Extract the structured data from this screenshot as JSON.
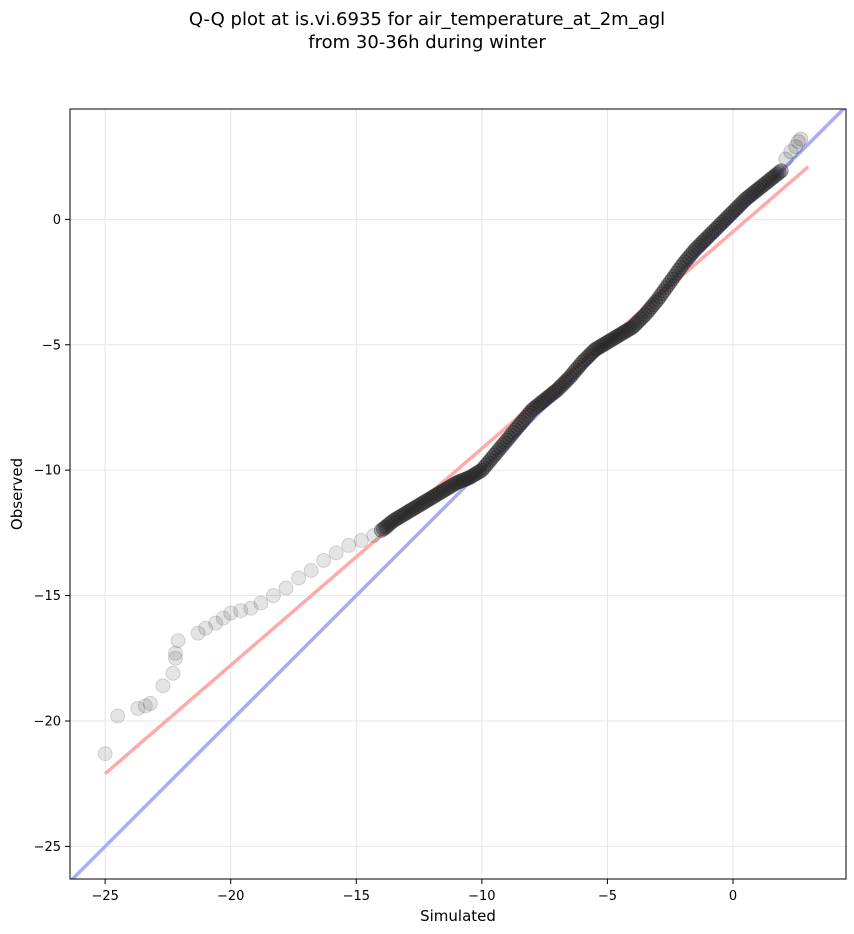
{
  "chart_data": {
    "type": "scatter",
    "title_line1": "Q-Q plot at is.vi.6935 for air_temperature_at_2m_agl",
    "title_line2": "from 30-36h during winter",
    "xlabel": "Simulated",
    "ylabel": "Observed",
    "xlim": [
      -26.4,
      4.5
    ],
    "ylim": [
      -26.3,
      4.4
    ],
    "xticks": [
      -25,
      -20,
      -15,
      -10,
      -5,
      0
    ],
    "yticks": [
      -25,
      -20,
      -15,
      -10,
      -5,
      0
    ],
    "xtick_labels": [
      "−25",
      "−20",
      "−15",
      "−10",
      "−5",
      "0"
    ],
    "ytick_labels": [
      "−25",
      "−20",
      "−15",
      "−10",
      "−5",
      "0"
    ],
    "grid": true,
    "identity_line": {
      "color": "#aaaaff",
      "x": [
        -26.4,
        4.5
      ],
      "y": [
        -26.4,
        4.5
      ]
    },
    "fit_line": {
      "color": "#ffaaaa",
      "x": [
        -25.0,
        3.0
      ],
      "y": [
        -22.1,
        2.1
      ]
    },
    "points_outer": {
      "x": [
        -25.0,
        -24.5,
        -23.7,
        -23.4,
        -23.2,
        -22.7,
        -22.3,
        -22.2,
        -22.2,
        -22.1,
        -21.3,
        -21.0,
        -20.6,
        -20.3,
        -20.0,
        -19.6,
        -19.2,
        -18.8,
        -18.3,
        -17.8,
        -17.3,
        -16.8,
        -16.3,
        -15.8,
        -15.3,
        -14.8,
        -14.3,
        -13.8
      ],
      "y": [
        -21.3,
        -19.8,
        -19.5,
        -19.4,
        -19.3,
        -18.6,
        -18.1,
        -17.5,
        -17.3,
        -16.8,
        -16.5,
        -16.3,
        -16.1,
        -15.9,
        -15.7,
        -15.6,
        -15.5,
        -15.3,
        -15.0,
        -14.7,
        -14.3,
        -14.0,
        -13.6,
        -13.3,
        -13.0,
        -12.8,
        -12.6,
        -12.3
      ]
    },
    "points_dense": {
      "x": [
        -14.0,
        -13.5,
        -13.0,
        -12.5,
        -12.0,
        -11.5,
        -11.0,
        -10.5,
        -10.0,
        -9.5,
        -9.0,
        -8.5,
        -8.0,
        -7.5,
        -7.0,
        -6.5,
        -6.0,
        -5.5,
        -5.0,
        -4.5,
        -4.0,
        -3.5,
        -3.0,
        -2.5,
        -2.0,
        -1.5,
        -1.0,
        -0.5,
        0.0,
        0.5,
        1.0,
        1.5,
        2.0
      ],
      "y": [
        -12.4,
        -12.0,
        -11.7,
        -11.4,
        -11.1,
        -10.8,
        -10.5,
        -10.3,
        -10.0,
        -9.4,
        -8.8,
        -8.2,
        -7.6,
        -7.2,
        -6.8,
        -6.3,
        -5.7,
        -5.2,
        -4.9,
        -4.6,
        -4.3,
        -3.8,
        -3.2,
        -2.5,
        -1.8,
        -1.2,
        -0.7,
        -0.2,
        0.3,
        0.8,
        1.2,
        1.6,
        2.0
      ]
    },
    "points_top": {
      "x": [
        2.1,
        2.3,
        2.5,
        2.6,
        2.7
      ],
      "y": [
        2.4,
        2.7,
        2.9,
        3.1,
        3.2
      ]
    }
  }
}
